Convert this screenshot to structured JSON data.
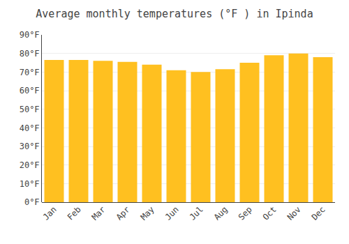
{
  "chart_data": {
    "type": "bar",
    "title": "Average monthly temperatures (°F ) in Ipinda",
    "categories": [
      "Jan",
      "Feb",
      "Mar",
      "Apr",
      "May",
      "Jun",
      "Jul",
      "Aug",
      "Sep",
      "Oct",
      "Nov",
      "Dec"
    ],
    "values": [
      76.5,
      76.5,
      76.0,
      75.5,
      74.0,
      71.0,
      70.0,
      71.5,
      75.0,
      79.0,
      80.0,
      78.0
    ],
    "color": "#FFC020",
    "ylim": [
      0,
      90
    ],
    "yticks": [
      {
        "value": 0,
        "label": "0°F"
      },
      {
        "value": 10,
        "label": "10°F"
      },
      {
        "value": 20,
        "label": "20°F"
      },
      {
        "value": 30,
        "label": "30°F"
      },
      {
        "value": 40,
        "label": "40°F"
      },
      {
        "value": 50,
        "label": "50°F"
      },
      {
        "value": 60,
        "label": "60°F"
      },
      {
        "value": 70,
        "label": "70°F"
      },
      {
        "value": 80,
        "label": "80°F"
      },
      {
        "value": 90,
        "label": "90°F"
      }
    ],
    "grid": true
  }
}
